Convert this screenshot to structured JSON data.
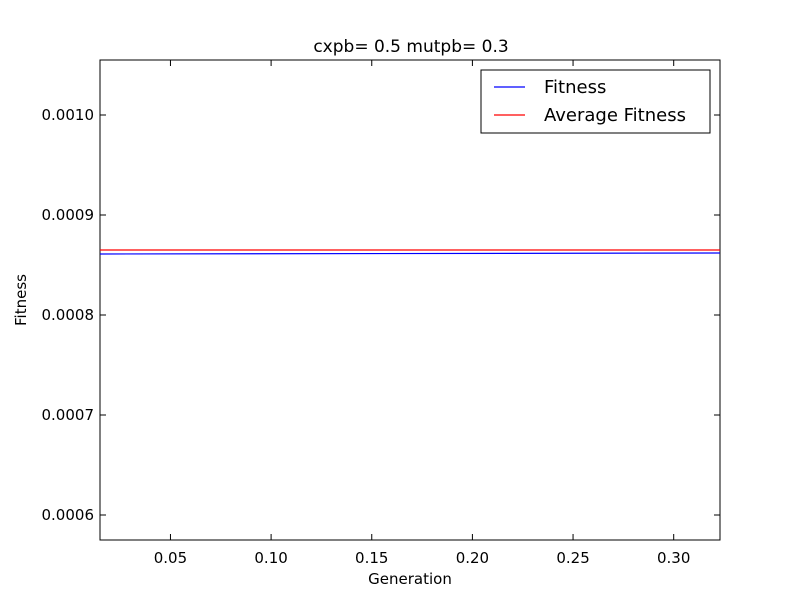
{
  "chart_data": {
    "type": "line",
    "title": "cxpb= 0.5 mutpb= 0.3",
    "xlabel": "Generation",
    "ylabel": "Fitness",
    "xlim": [
      0.015,
      0.323
    ],
    "ylim": [
      0.000575,
      0.001055
    ],
    "x_ticks": [
      0.05,
      0.1,
      0.15,
      0.2,
      0.25,
      0.3
    ],
    "x_tick_labels": [
      "0.05",
      "0.10",
      "0.15",
      "0.20",
      "0.25",
      "0.30"
    ],
    "y_ticks": [
      0.0006,
      0.0007,
      0.0008,
      0.0009,
      0.001
    ],
    "y_tick_labels": [
      "0.0006",
      "0.0007",
      "0.0008",
      "0.0009",
      "0.0010"
    ],
    "grid": false,
    "legend_position": "top-right",
    "series": [
      {
        "name": "Fitness",
        "color": "#0000ff",
        "x": [
          0.015,
          0.323
        ],
        "y": [
          0.000861,
          0.000862
        ]
      },
      {
        "name": "Average Fitness",
        "color": "#ff0000",
        "x": [
          0.015,
          0.323
        ],
        "y": [
          0.000865,
          0.000865
        ]
      }
    ]
  }
}
